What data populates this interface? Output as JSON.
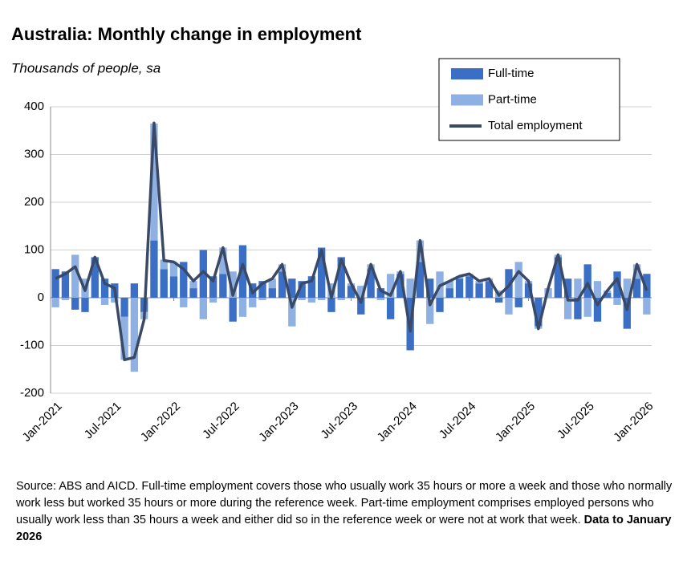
{
  "chart_data": {
    "type": "bar-line",
    "title": "Australia: Monthly change in employment",
    "subtitle": "Thousands of people, sa",
    "categories": [
      "Jan-2021",
      null,
      null,
      null,
      null,
      null,
      "Jul-2021",
      null,
      null,
      null,
      null,
      null,
      "Jan-2022",
      null,
      null,
      null,
      null,
      null,
      "Jul-2022",
      null,
      null,
      null,
      null,
      null,
      "Jan-2023",
      null,
      null,
      null,
      null,
      null,
      "Jul-2023",
      null,
      null,
      null,
      null,
      null,
      "Jan-2024",
      null,
      null,
      null,
      null,
      null,
      "Jul-2024",
      null,
      null,
      null,
      null,
      null,
      "Jan-2025",
      null,
      null,
      null,
      null,
      null,
      "Jul-2025",
      null,
      null,
      null,
      null,
      null,
      "Jan-2026"
    ],
    "series": [
      {
        "name": "Full-time",
        "type": "bar",
        "color": "#3b6fc6",
        "values": [
          60,
          55,
          -25,
          -30,
          85,
          40,
          30,
          -40,
          30,
          -30,
          120,
          60,
          45,
          75,
          20,
          100,
          45,
          50,
          -50,
          110,
          30,
          35,
          20,
          55,
          40,
          35,
          45,
          105,
          -30,
          85,
          25,
          -35,
          60,
          20,
          -45,
          50,
          -110,
          75,
          40,
          -30,
          20,
          40,
          45,
          30,
          35,
          -10,
          60,
          -20,
          30,
          -60,
          0,
          85,
          40,
          -45,
          70,
          -50,
          10,
          55,
          -65,
          40,
          50
        ]
      },
      {
        "name": "Part-time",
        "type": "bar",
        "color": "#8fb0e2",
        "values": [
          -20,
          -5,
          90,
          40,
          0,
          -15,
          -10,
          -90,
          -155,
          -15,
          245,
          20,
          30,
          -20,
          15,
          -45,
          -10,
          55,
          55,
          -40,
          -20,
          -5,
          20,
          15,
          -60,
          -5,
          -10,
          -5,
          30,
          -5,
          5,
          25,
          10,
          -5,
          50,
          5,
          40,
          45,
          -55,
          55,
          15,
          5,
          5,
          5,
          5,
          15,
          -35,
          75,
          5,
          -5,
          20,
          5,
          -45,
          40,
          -40,
          35,
          5,
          -15,
          40,
          30,
          -35
        ]
      },
      {
        "name": "Total employment",
        "type": "line",
        "color": "#3a4a66",
        "values": [
          40,
          50,
          65,
          15,
          85,
          30,
          20,
          -130,
          -125,
          -45,
          366,
          78,
          75,
          60,
          35,
          55,
          35,
          105,
          5,
          70,
          10,
          30,
          40,
          70,
          -20,
          30,
          35,
          100,
          0,
          80,
          30,
          -10,
          70,
          15,
          5,
          55,
          -70,
          120,
          -15,
          25,
          35,
          45,
          50,
          35,
          40,
          5,
          25,
          55,
          35,
          -65,
          20,
          90,
          -5,
          -5,
          30,
          -15,
          15,
          40,
          -25,
          70,
          15
        ]
      }
    ],
    "ylim": [
      -200,
      400
    ],
    "yticks": [
      -200,
      -100,
      0,
      100,
      200,
      300,
      400
    ],
    "grid": true,
    "legend": "top-right"
  },
  "footnote": {
    "text": "Source: ABS and AICD.  Full-time employment covers those who usually work 35 hours or more a week and those who normally work less but worked 35 hours or more during the reference week. Part-time employment comprises employed persons who usually work less than 35 hours a week and either did so in the reference week or were not at work that week.",
    "bold": "Data to January 2026"
  }
}
